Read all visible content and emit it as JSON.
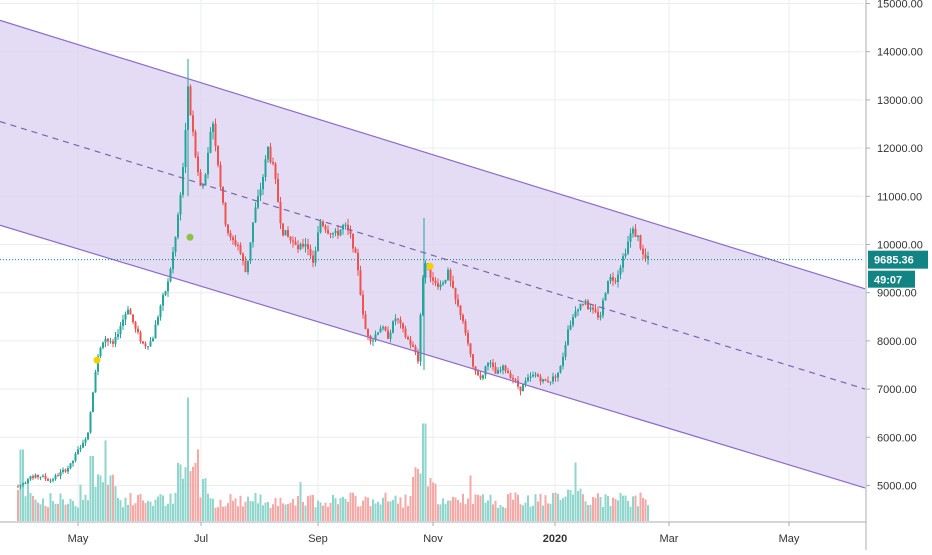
{
  "colors": {
    "up": "#26a69a",
    "down": "#ef5350",
    "volume_up": "#8fd6cc",
    "volume_down": "#f4a9a7",
    "channel_fill": "#ded6f2",
    "channel_line": "#8e6bc8",
    "midline": "#7a64a8",
    "current_price": "#138484",
    "grid": "#e9ecf2",
    "marker_yellow": "#f1d200",
    "marker_green": "#8bc34a"
  },
  "chart_data": {
    "type": "candlestick",
    "x_ticks": [
      "May",
      "Jul",
      "Sep",
      "Nov",
      "2020",
      "Mar",
      "May"
    ],
    "y_ticks": [
      "5000.00",
      "6000.00",
      "7000.00",
      "8000.00",
      "9000.00",
      "10000.00",
      "11000.00",
      "12000.00",
      "13000.00",
      "14000.00",
      "15000.00"
    ],
    "ylim": [
      4350,
      15000
    ],
    "current_price": "9685.36",
    "countdown": "49:07",
    "grid": true,
    "channel": {
      "upper": [
        [
          0,
          14650
        ],
        [
          865,
          9080
        ]
      ],
      "lower": [
        [
          0,
          10400
        ],
        [
          865,
          4950
        ]
      ],
      "middle": [
        [
          0,
          12550
        ],
        [
          865,
          7000
        ]
      ]
    },
    "anchors": [
      [
        18,
        4980
      ],
      [
        30,
        5150
      ],
      [
        40,
        5200
      ],
      [
        50,
        5100
      ],
      [
        60,
        5250
      ],
      [
        70,
        5400
      ],
      [
        80,
        5800
      ],
      [
        88,
        6100
      ],
      [
        96,
        7500
      ],
      [
        104,
        8100
      ],
      [
        112,
        7900
      ],
      [
        120,
        8300
      ],
      [
        128,
        8700
      ],
      [
        136,
        8200
      ],
      [
        144,
        7900
      ],
      [
        152,
        8000
      ],
      [
        160,
        8700
      ],
      [
        168,
        9200
      ],
      [
        176,
        10200
      ],
      [
        183,
        11600
      ],
      [
        188,
        13200
      ],
      [
        195,
        11900
      ],
      [
        200,
        11200
      ],
      [
        206,
        11400
      ],
      [
        212,
        12700
      ],
      [
        218,
        11700
      ],
      [
        224,
        10600
      ],
      [
        230,
        10100
      ],
      [
        238,
        10000
      ],
      [
        246,
        9400
      ],
      [
        254,
        10600
      ],
      [
        262,
        11300
      ],
      [
        268,
        12000
      ],
      [
        274,
        11500
      ],
      [
        282,
        10300
      ],
      [
        290,
        10100
      ],
      [
        298,
        9900
      ],
      [
        306,
        10050
      ],
      [
        314,
        9600
      ],
      [
        320,
        10500
      ],
      [
        328,
        10300
      ],
      [
        336,
        10200
      ],
      [
        344,
        10400
      ],
      [
        352,
        10100
      ],
      [
        358,
        9500
      ],
      [
        364,
        8300
      ],
      [
        372,
        8000
      ],
      [
        380,
        8300
      ],
      [
        388,
        8100
      ],
      [
        396,
        8500
      ],
      [
        404,
        8150
      ],
      [
        412,
        7900
      ],
      [
        418,
        7600
      ],
      [
        424,
        9700
      ],
      [
        432,
        9300
      ],
      [
        440,
        9150
      ],
      [
        448,
        9400
      ],
      [
        456,
        8800
      ],
      [
        464,
        8400
      ],
      [
        472,
        7500
      ],
      [
        480,
        7150
      ],
      [
        488,
        7600
      ],
      [
        496,
        7300
      ],
      [
        504,
        7450
      ],
      [
        512,
        7250
      ],
      [
        520,
        7000
      ],
      [
        528,
        7200
      ],
      [
        536,
        7300
      ],
      [
        544,
        7150
      ],
      [
        552,
        7200
      ],
      [
        560,
        7400
      ],
      [
        568,
        8200
      ],
      [
        576,
        8700
      ],
      [
        584,
        8800
      ],
      [
        592,
        8600
      ],
      [
        600,
        8500
      ],
      [
        608,
        9300
      ],
      [
        616,
        9300
      ],
      [
        624,
        9800
      ],
      [
        632,
        10300
      ],
      [
        638,
        10150
      ],
      [
        644,
        9700
      ],
      [
        650,
        9685
      ]
    ],
    "volume_peaks": [
      [
        188,
        0.95
      ],
      [
        198,
        0.55
      ],
      [
        424,
        0.75
      ],
      [
        22,
        0.55
      ],
      [
        106,
        0.62
      ],
      [
        92,
        0.5
      ],
      [
        575,
        0.45
      ],
      [
        470,
        0.35
      ],
      [
        300,
        0.3
      ]
    ],
    "markers": [
      {
        "date_x": 97,
        "price": 7600,
        "color": "yellow"
      },
      {
        "date_x": 190,
        "price": 10150,
        "color": "green"
      },
      {
        "date_x": 430,
        "price": 9550,
        "color": "yellow"
      }
    ]
  }
}
